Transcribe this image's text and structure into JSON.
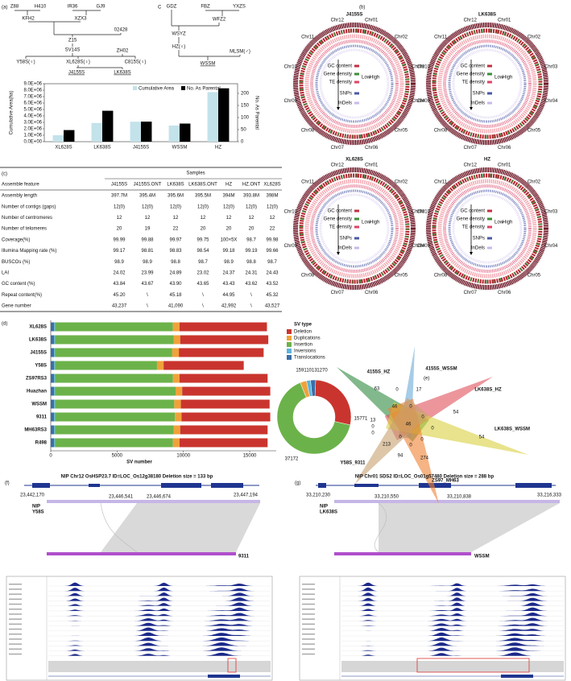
{
  "panel_labels": [
    "(a)",
    "C",
    "(b)",
    "(c)",
    "(d)",
    "(e)",
    "(f)",
    "(g)"
  ],
  "pedigree_1": {
    "nodes": [
      "Z88",
      "H410",
      "IR36",
      "GJ9",
      "KFH2",
      "XZX3",
      "02428",
      "Z15",
      "SV14S",
      "ZH02",
      "Y58S(♀)",
      "XL628S(♀)",
      "C815S(♀)",
      "J4155S",
      "LK638S"
    ]
  },
  "pedigree_2": {
    "nodes": [
      "GDZ",
      "FBZ",
      "YXZS",
      "WFZ2",
      "WSYZ",
      "HZ(♀)",
      "MLSM(♂)",
      "WSSM"
    ]
  },
  "chart_data": [
    {
      "type": "bar",
      "y_label": "Cumulative Area(ha)",
      "y2_label": "No. As Parental",
      "categories": [
        "XL628S",
        "LK638S",
        "J4155S",
        "WSSM",
        "HZ"
      ],
      "series": [
        {
          "name": "Cumulative Area",
          "color": "#c3e2ea",
          "values": [
            1000000,
            2900000,
            3100000,
            2500000,
            7700000
          ]
        },
        {
          "name": "No. As Parental",
          "color": "#000000",
          "axis": "y2",
          "values": [
            48,
            128,
            83,
            75,
            221
          ]
        }
      ],
      "ylim": [
        0,
        9000000
      ],
      "yticks": [
        {
          "value": 0,
          "label": "0.0E+00"
        },
        {
          "value": 1000000,
          "label": "1.0E+06"
        },
        {
          "value": 2000000,
          "label": "2.0E+06"
        },
        {
          "value": 3000000,
          "label": "3.0E+06"
        },
        {
          "value": 4000000,
          "label": "4.0E+06"
        },
        {
          "value": 5000000,
          "label": "5.0E+06"
        },
        {
          "value": 6000000,
          "label": "6.0E+06"
        },
        {
          "value": 7000000,
          "label": "7.0E+06"
        },
        {
          "value": 8000000,
          "label": "8.0E+06"
        },
        {
          "value": 9000000,
          "label": "9.0E+06"
        }
      ],
      "y2lim": [
        0,
        240
      ],
      "y2ticks": [
        0,
        50,
        100,
        150,
        200
      ]
    },
    {
      "type": "stacked-bar-horizontal",
      "x_label": "SV number",
      "legend_title": "SV type",
      "categories": [
        "XL628S",
        "LK638S",
        "J4155S",
        "Y58S",
        "ZS97RS3",
        "Huazhan",
        "WSSM",
        "9311",
        "MH63RS3",
        "R498"
      ],
      "series": [
        {
          "name": "Translocations",
          "color": "#3b6ea8",
          "values": [
            250,
            250,
            250,
            250,
            250,
            250,
            250,
            250,
            250,
            250
          ]
        },
        {
          "name": "Inversions",
          "color": "#5ab4dc",
          "values": [
            60,
            60,
            60,
            60,
            60,
            60,
            60,
            60,
            60,
            60
          ]
        },
        {
          "name": "Insertion",
          "color": "#6cb24a",
          "values": [
            8900,
            8950,
            8850,
            7700,
            8900,
            9100,
            9000,
            9050,
            8950,
            8900
          ]
        },
        {
          "name": "Duplications",
          "color": "#f0a23a",
          "values": [
            500,
            500,
            500,
            500,
            500,
            500,
            500,
            500,
            500,
            500
          ]
        },
        {
          "name": "Deletion",
          "color": "#c9352e",
          "values": [
            6590,
            6640,
            6390,
            6040,
            6640,
            6640,
            6690,
            6690,
            6590,
            6640
          ]
        }
      ],
      "xlim": [
        0,
        17000
      ],
      "xticks": [
        0,
        5000,
        10000,
        15000
      ]
    },
    {
      "type": "donut",
      "categories": [
        "Duplications",
        "Inversions",
        "Translocations",
        "Deletion",
        "Insertion"
      ],
      "colors": [
        "#f0a23a",
        "#5ab4dc",
        "#3b6ea8",
        "#c9352e",
        "#6cb24a"
      ],
      "values": [
        1591,
        1013,
        1270,
        15771,
        37172
      ]
    }
  ],
  "circos": {
    "titles": [
      "J4155S",
      "LK638S",
      "XL628S",
      "HZ"
    ],
    "chromosomes": [
      "Chr01",
      "Chr02",
      "Chr03",
      "Chr04",
      "Chr05",
      "Chr06",
      "Chr07",
      "Chr08",
      "Chr09",
      "Chr10",
      "Chr11",
      "Chr12"
    ],
    "legend": [
      "GC content",
      "Gene density",
      "TE density",
      "SNPs",
      "InDels"
    ],
    "legend_levels": [
      "Low",
      "High"
    ]
  },
  "table": {
    "group_header": "Samples",
    "columns": [
      "Assemble feature",
      "J4155S",
      "J4155S.ONT",
      "LK638S",
      "LK638S.ONT",
      "HZ",
      "HZ.ONT",
      "XL628S"
    ],
    "rows": [
      [
        "Assembly length",
        "397.7M",
        "395.4M",
        "395.6M",
        "395.5M",
        "394M",
        "393.8M",
        "398M"
      ],
      [
        "Number of contigs (gaps)",
        "12(0)",
        "12(0)",
        "12(0)",
        "12(0)",
        "12(0)",
        "12(0)",
        "12(0)"
      ],
      [
        "Number of centromeres",
        "12",
        "12",
        "12",
        "12",
        "12",
        "12",
        "12"
      ],
      [
        "Number of telomeres",
        "20",
        "19",
        "22",
        "20",
        "20",
        "20",
        "22"
      ],
      [
        "Coverage(%)",
        "99.99",
        "99.88",
        "99.97",
        "99.75",
        "100×5X",
        "98.7",
        "99.98"
      ],
      [
        "Illumina Mapping rate (%)",
        "99.17",
        "98.81",
        "98.83",
        "98.54",
        "99.18",
        "99.19",
        "99.66"
      ],
      [
        "BUSCOs (%)",
        "98.9",
        "98.9",
        "98.8",
        "98.7",
        "98.9",
        "98.8",
        "98.7"
      ],
      [
        "LAI",
        "24.02",
        "23.99",
        "24.89",
        "23.02",
        "24.37",
        "24.31",
        "24.43"
      ],
      [
        "GC content (%)",
        "43.84",
        "43.67",
        "43.90",
        "43.65",
        "43.43",
        "43.62",
        "43.52"
      ],
      [
        "Repeat content(%)",
        "45.20",
        "\\",
        "45.18",
        "\\",
        "44.95",
        "\\",
        "45.32"
      ],
      [
        "Gene number",
        "43,237",
        "\\",
        "41,090",
        "\\",
        "42,992",
        "\\",
        "43,527"
      ]
    ]
  },
  "venn": {
    "sets": [
      "4155S_HZ",
      "4155S_WSSM",
      "LK638S_HZ",
      "LK638S_WSSM",
      "ZS97_MH63",
      "Y58S_9311"
    ],
    "counts": [
      63,
      0,
      17,
      54,
      46,
      0,
      0,
      46,
      0,
      54,
      0,
      13,
      0,
      0,
      0,
      213,
      0,
      94,
      274
    ]
  },
  "panel_f": {
    "title": "NIP Chr12 OsHSP23.7 ID=LOC_Os12g38180 Deletion size = 133 bp",
    "start": "23,442,170",
    "del_start": "23,446,541",
    "del_end": "23,446,674",
    "end": "23,447,194",
    "reference": "NIP",
    "query": "Y58S",
    "other": "9311"
  },
  "panel_g": {
    "title": "NIP Chr01 SDS2 ID=LOC_Os01g57480 Deletion size = 288 bp",
    "start": "33,210,230",
    "del_start": "33,210,550",
    "del_end": "33,210,838",
    "end": "33,216,333",
    "reference": "NIP",
    "query": "LK638S",
    "other": "WSSM"
  }
}
